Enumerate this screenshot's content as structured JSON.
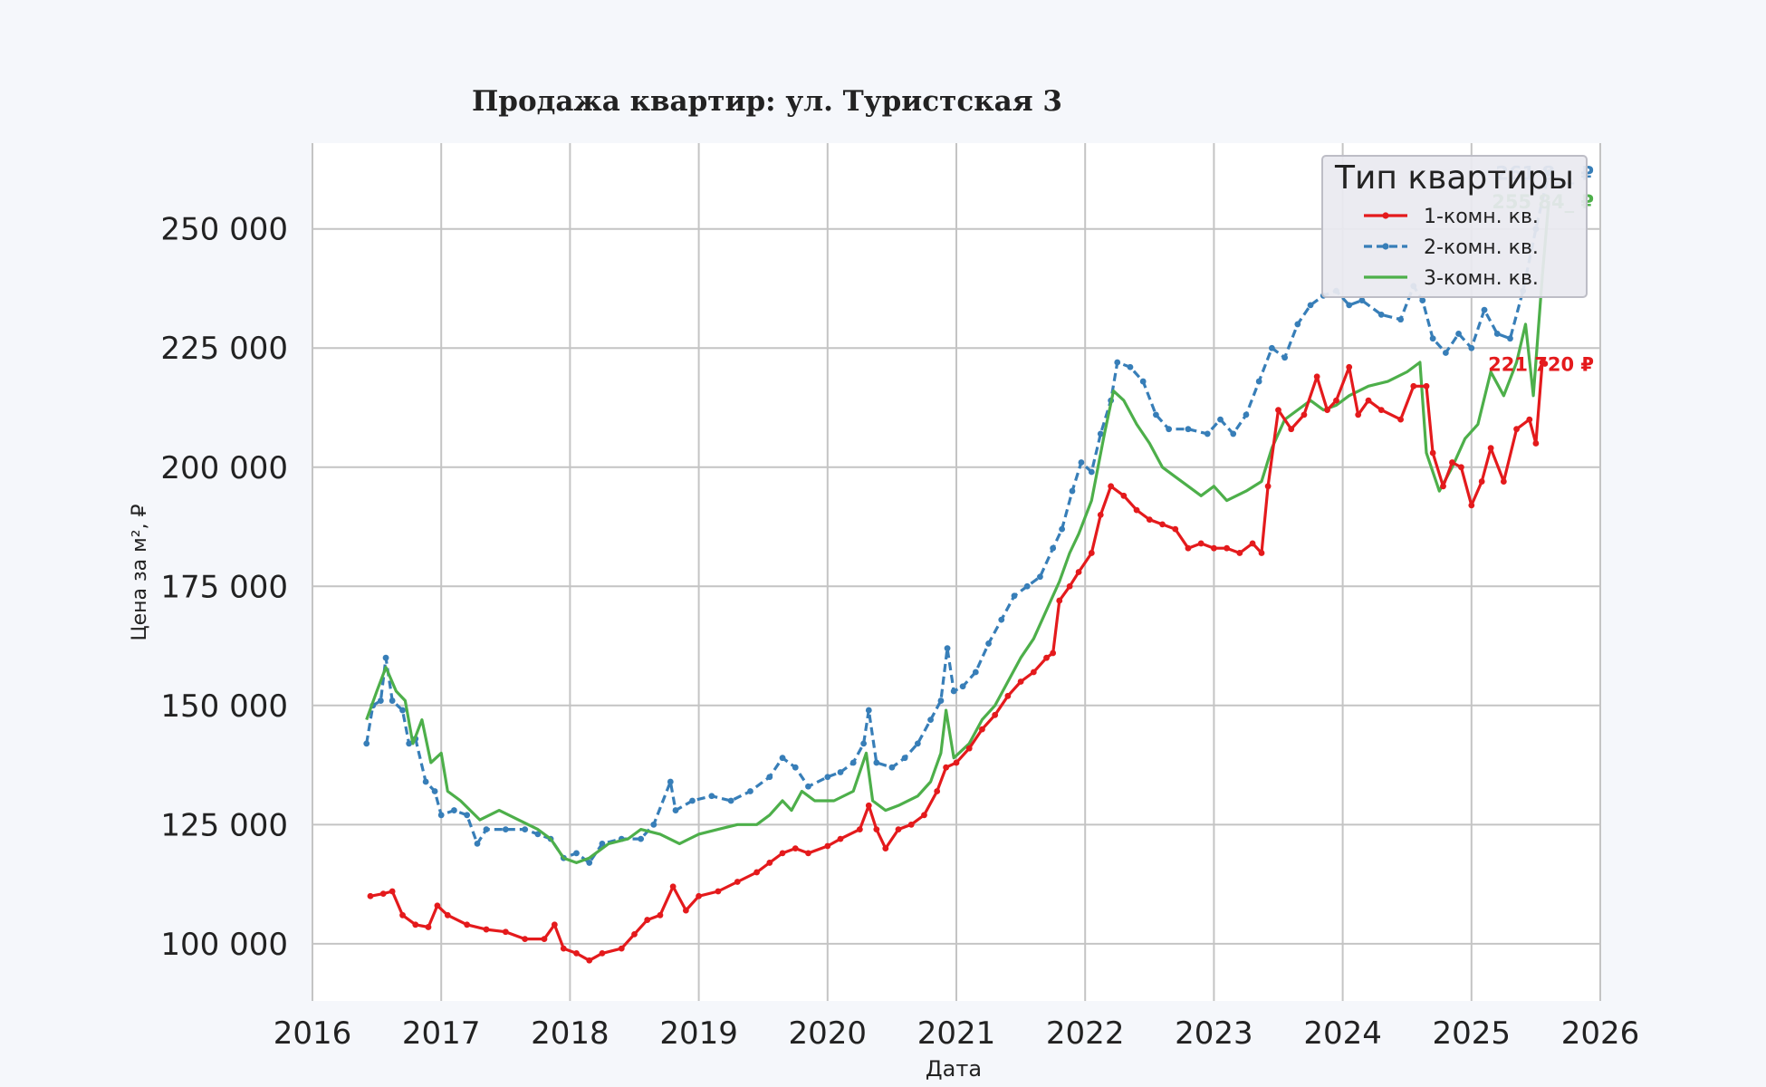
{
  "chart_data": {
    "type": "line",
    "title": "Продажа квартир: ул. Туристская 3",
    "xlabel": "Дата",
    "ylabel": "Цена за м², ₽",
    "x_ticks": [
      "2016",
      "2017",
      "2018",
      "2019",
      "2020",
      "2021",
      "2022",
      "2023",
      "2024",
      "2025",
      "2026"
    ],
    "y_ticks": [
      "100 000",
      "125 000",
      "150 000",
      "175 000",
      "200 000",
      "225 000",
      "250 000"
    ],
    "xlim": [
      2016.0,
      2026.0
    ],
    "ylim": [
      88000,
      268000
    ],
    "grid": true,
    "legend": {
      "title": "Тип квартиры",
      "position": "top-right",
      "entries": [
        "1-комн. кв.",
        "2-комн. кв.",
        "3-комн. кв."
      ]
    },
    "series": [
      {
        "name": "1-комн. кв.",
        "color": "#e41a1c",
        "style": "solid-markers",
        "end_label": "221 720 ₽",
        "points": [
          [
            2016.45,
            110000
          ],
          [
            2016.55,
            110500
          ],
          [
            2016.62,
            111000
          ],
          [
            2016.7,
            106000
          ],
          [
            2016.8,
            104000
          ],
          [
            2016.9,
            103500
          ],
          [
            2016.97,
            108000
          ],
          [
            2017.05,
            106000
          ],
          [
            2017.2,
            104000
          ],
          [
            2017.35,
            103000
          ],
          [
            2017.5,
            102500
          ],
          [
            2017.65,
            101000
          ],
          [
            2017.8,
            101000
          ],
          [
            2017.88,
            104000
          ],
          [
            2017.95,
            99000
          ],
          [
            2018.05,
            98000
          ],
          [
            2018.15,
            96500
          ],
          [
            2018.25,
            98000
          ],
          [
            2018.4,
            99000
          ],
          [
            2018.5,
            102000
          ],
          [
            2018.6,
            105000
          ],
          [
            2018.7,
            106000
          ],
          [
            2018.8,
            112000
          ],
          [
            2018.9,
            107000
          ],
          [
            2019.0,
            110000
          ],
          [
            2019.15,
            111000
          ],
          [
            2019.3,
            113000
          ],
          [
            2019.45,
            115000
          ],
          [
            2019.55,
            117000
          ],
          [
            2019.65,
            119000
          ],
          [
            2019.75,
            120000
          ],
          [
            2019.85,
            119000
          ],
          [
            2020.0,
            120500
          ],
          [
            2020.1,
            122000
          ],
          [
            2020.25,
            124000
          ],
          [
            2020.32,
            129000
          ],
          [
            2020.38,
            124000
          ],
          [
            2020.45,
            120000
          ],
          [
            2020.55,
            124000
          ],
          [
            2020.65,
            125000
          ],
          [
            2020.75,
            127000
          ],
          [
            2020.85,
            132000
          ],
          [
            2020.92,
            137000
          ],
          [
            2021.0,
            138000
          ],
          [
            2021.1,
            141000
          ],
          [
            2021.2,
            145000
          ],
          [
            2021.3,
            148000
          ],
          [
            2021.4,
            152000
          ],
          [
            2021.5,
            155000
          ],
          [
            2021.6,
            157000
          ],
          [
            2021.7,
            160000
          ],
          [
            2021.75,
            161000
          ],
          [
            2021.8,
            172000
          ],
          [
            2021.88,
            175000
          ],
          [
            2021.95,
            178000
          ],
          [
            2022.05,
            182000
          ],
          [
            2022.12,
            190000
          ],
          [
            2022.2,
            196000
          ],
          [
            2022.3,
            194000
          ],
          [
            2022.4,
            191000
          ],
          [
            2022.5,
            189000
          ],
          [
            2022.6,
            188000
          ],
          [
            2022.7,
            187000
          ],
          [
            2022.8,
            183000
          ],
          [
            2022.9,
            184000
          ],
          [
            2023.0,
            183000
          ],
          [
            2023.1,
            183000
          ],
          [
            2023.2,
            182000
          ],
          [
            2023.3,
            184000
          ],
          [
            2023.37,
            182000
          ],
          [
            2023.42,
            196000
          ],
          [
            2023.5,
            212000
          ],
          [
            2023.6,
            208000
          ],
          [
            2023.7,
            211000
          ],
          [
            2023.8,
            219000
          ],
          [
            2023.88,
            212000
          ],
          [
            2023.95,
            214000
          ],
          [
            2024.05,
            221000
          ],
          [
            2024.12,
            211000
          ],
          [
            2024.2,
            214000
          ],
          [
            2024.3,
            212000
          ],
          [
            2024.45,
            210000
          ],
          [
            2024.55,
            217000
          ],
          [
            2024.65,
            217000
          ],
          [
            2024.7,
            203000
          ],
          [
            2024.78,
            196000
          ],
          [
            2024.85,
            201000
          ],
          [
            2024.92,
            200000
          ],
          [
            2025.0,
            192000
          ],
          [
            2025.08,
            197000
          ],
          [
            2025.15,
            204000
          ],
          [
            2025.25,
            197000
          ],
          [
            2025.35,
            208000
          ],
          [
            2025.45,
            210000
          ],
          [
            2025.5,
            205000
          ],
          [
            2025.55,
            222000
          ],
          [
            2025.57,
            221720
          ]
        ]
      },
      {
        "name": "2-комн. кв.",
        "color": "#377eb8",
        "style": "dashed-markers",
        "end_label": "261 8__ ₽",
        "points": [
          [
            2016.42,
            142000
          ],
          [
            2016.47,
            150000
          ],
          [
            2016.53,
            151000
          ],
          [
            2016.57,
            160000
          ],
          [
            2016.62,
            151000
          ],
          [
            2016.7,
            149000
          ],
          [
            2016.75,
            142000
          ],
          [
            2016.8,
            143000
          ],
          [
            2016.88,
            134000
          ],
          [
            2016.95,
            132000
          ],
          [
            2017.0,
            127000
          ],
          [
            2017.1,
            128000
          ],
          [
            2017.2,
            127000
          ],
          [
            2017.28,
            121000
          ],
          [
            2017.35,
            124000
          ],
          [
            2017.5,
            124000
          ],
          [
            2017.65,
            124000
          ],
          [
            2017.75,
            123000
          ],
          [
            2017.85,
            122000
          ],
          [
            2017.95,
            118000
          ],
          [
            2018.05,
            119000
          ],
          [
            2018.15,
            117000
          ],
          [
            2018.25,
            121000
          ],
          [
            2018.4,
            122000
          ],
          [
            2018.55,
            122000
          ],
          [
            2018.65,
            125000
          ],
          [
            2018.78,
            134000
          ],
          [
            2018.82,
            128000
          ],
          [
            2018.95,
            130000
          ],
          [
            2019.1,
            131000
          ],
          [
            2019.25,
            130000
          ],
          [
            2019.4,
            132000
          ],
          [
            2019.55,
            135000
          ],
          [
            2019.65,
            139000
          ],
          [
            2019.75,
            137000
          ],
          [
            2019.85,
            133000
          ],
          [
            2020.0,
            135000
          ],
          [
            2020.1,
            136000
          ],
          [
            2020.2,
            138000
          ],
          [
            2020.28,
            142000
          ],
          [
            2020.32,
            149000
          ],
          [
            2020.38,
            138000
          ],
          [
            2020.5,
            137000
          ],
          [
            2020.6,
            139000
          ],
          [
            2020.7,
            142000
          ],
          [
            2020.8,
            147000
          ],
          [
            2020.88,
            151000
          ],
          [
            2020.93,
            162000
          ],
          [
            2020.98,
            153000
          ],
          [
            2021.05,
            154000
          ],
          [
            2021.15,
            157000
          ],
          [
            2021.25,
            163000
          ],
          [
            2021.35,
            168000
          ],
          [
            2021.45,
            173000
          ],
          [
            2021.55,
            175000
          ],
          [
            2021.65,
            177000
          ],
          [
            2021.75,
            183000
          ],
          [
            2021.82,
            187000
          ],
          [
            2021.9,
            195000
          ],
          [
            2021.97,
            201000
          ],
          [
            2022.05,
            199000
          ],
          [
            2022.12,
            207000
          ],
          [
            2022.2,
            214000
          ],
          [
            2022.25,
            222000
          ],
          [
            2022.35,
            221000
          ],
          [
            2022.45,
            218000
          ],
          [
            2022.55,
            211000
          ],
          [
            2022.65,
            208000
          ],
          [
            2022.8,
            208000
          ],
          [
            2022.95,
            207000
          ],
          [
            2023.05,
            210000
          ],
          [
            2023.15,
            207000
          ],
          [
            2023.25,
            211000
          ],
          [
            2023.35,
            218000
          ],
          [
            2023.45,
            225000
          ],
          [
            2023.55,
            223000
          ],
          [
            2023.65,
            230000
          ],
          [
            2023.75,
            234000
          ],
          [
            2023.85,
            236000
          ],
          [
            2023.95,
            237000
          ],
          [
            2024.05,
            234000
          ],
          [
            2024.15,
            235000
          ],
          [
            2024.3,
            232000
          ],
          [
            2024.45,
            231000
          ],
          [
            2024.55,
            238000
          ],
          [
            2024.62,
            235000
          ],
          [
            2024.7,
            227000
          ],
          [
            2024.8,
            224000
          ],
          [
            2024.9,
            228000
          ],
          [
            2025.0,
            225000
          ],
          [
            2025.1,
            233000
          ],
          [
            2025.2,
            228000
          ],
          [
            2025.3,
            227000
          ],
          [
            2025.4,
            237000
          ],
          [
            2025.5,
            250000
          ],
          [
            2025.6,
            261800
          ]
        ]
      },
      {
        "name": "3-комн. кв.",
        "color": "#4daf4a",
        "style": "solid",
        "end_label": "255 84_ ₽",
        "points": [
          [
            2016.42,
            147000
          ],
          [
            2016.5,
            153000
          ],
          [
            2016.57,
            158000
          ],
          [
            2016.65,
            153000
          ],
          [
            2016.72,
            151000
          ],
          [
            2016.78,
            142000
          ],
          [
            2016.85,
            147000
          ],
          [
            2016.92,
            138000
          ],
          [
            2017.0,
            140000
          ],
          [
            2017.05,
            132000
          ],
          [
            2017.15,
            130000
          ],
          [
            2017.3,
            126000
          ],
          [
            2017.45,
            128000
          ],
          [
            2017.6,
            126000
          ],
          [
            2017.75,
            124000
          ],
          [
            2017.85,
            122000
          ],
          [
            2017.95,
            118000
          ],
          [
            2018.05,
            117000
          ],
          [
            2018.15,
            118000
          ],
          [
            2018.3,
            121000
          ],
          [
            2018.45,
            122000
          ],
          [
            2018.55,
            124000
          ],
          [
            2018.7,
            123000
          ],
          [
            2018.85,
            121000
          ],
          [
            2019.0,
            123000
          ],
          [
            2019.15,
            124000
          ],
          [
            2019.3,
            125000
          ],
          [
            2019.45,
            125000
          ],
          [
            2019.55,
            127000
          ],
          [
            2019.65,
            130000
          ],
          [
            2019.72,
            128000
          ],
          [
            2019.8,
            132000
          ],
          [
            2019.9,
            130000
          ],
          [
            2020.05,
            130000
          ],
          [
            2020.2,
            132000
          ],
          [
            2020.3,
            140000
          ],
          [
            2020.35,
            130000
          ],
          [
            2020.45,
            128000
          ],
          [
            2020.55,
            129000
          ],
          [
            2020.7,
            131000
          ],
          [
            2020.8,
            134000
          ],
          [
            2020.88,
            140000
          ],
          [
            2020.92,
            149000
          ],
          [
            2020.98,
            139000
          ],
          [
            2021.1,
            142000
          ],
          [
            2021.2,
            147000
          ],
          [
            2021.3,
            150000
          ],
          [
            2021.4,
            155000
          ],
          [
            2021.5,
            160000
          ],
          [
            2021.6,
            164000
          ],
          [
            2021.7,
            170000
          ],
          [
            2021.8,
            176000
          ],
          [
            2021.88,
            182000
          ],
          [
            2021.95,
            186000
          ],
          [
            2022.05,
            193000
          ],
          [
            2022.15,
            207000
          ],
          [
            2022.22,
            216000
          ],
          [
            2022.3,
            214000
          ],
          [
            2022.4,
            209000
          ],
          [
            2022.5,
            205000
          ],
          [
            2022.6,
            200000
          ],
          [
            2022.7,
            198000
          ],
          [
            2022.8,
            196000
          ],
          [
            2022.9,
            194000
          ],
          [
            2023.0,
            196000
          ],
          [
            2023.1,
            193000
          ],
          [
            2023.25,
            195000
          ],
          [
            2023.37,
            197000
          ],
          [
            2023.45,
            204000
          ],
          [
            2023.55,
            210000
          ],
          [
            2023.65,
            212000
          ],
          [
            2023.75,
            214000
          ],
          [
            2023.85,
            212000
          ],
          [
            2023.95,
            213000
          ],
          [
            2024.05,
            215000
          ],
          [
            2024.2,
            217000
          ],
          [
            2024.35,
            218000
          ],
          [
            2024.5,
            220000
          ],
          [
            2024.6,
            222000
          ],
          [
            2024.65,
            203000
          ],
          [
            2024.75,
            195000
          ],
          [
            2024.85,
            200000
          ],
          [
            2024.95,
            206000
          ],
          [
            2025.05,
            209000
          ],
          [
            2025.15,
            220000
          ],
          [
            2025.25,
            215000
          ],
          [
            2025.35,
            222000
          ],
          [
            2025.42,
            230000
          ],
          [
            2025.48,
            215000
          ],
          [
            2025.55,
            240000
          ],
          [
            2025.6,
            255840
          ]
        ]
      }
    ]
  }
}
